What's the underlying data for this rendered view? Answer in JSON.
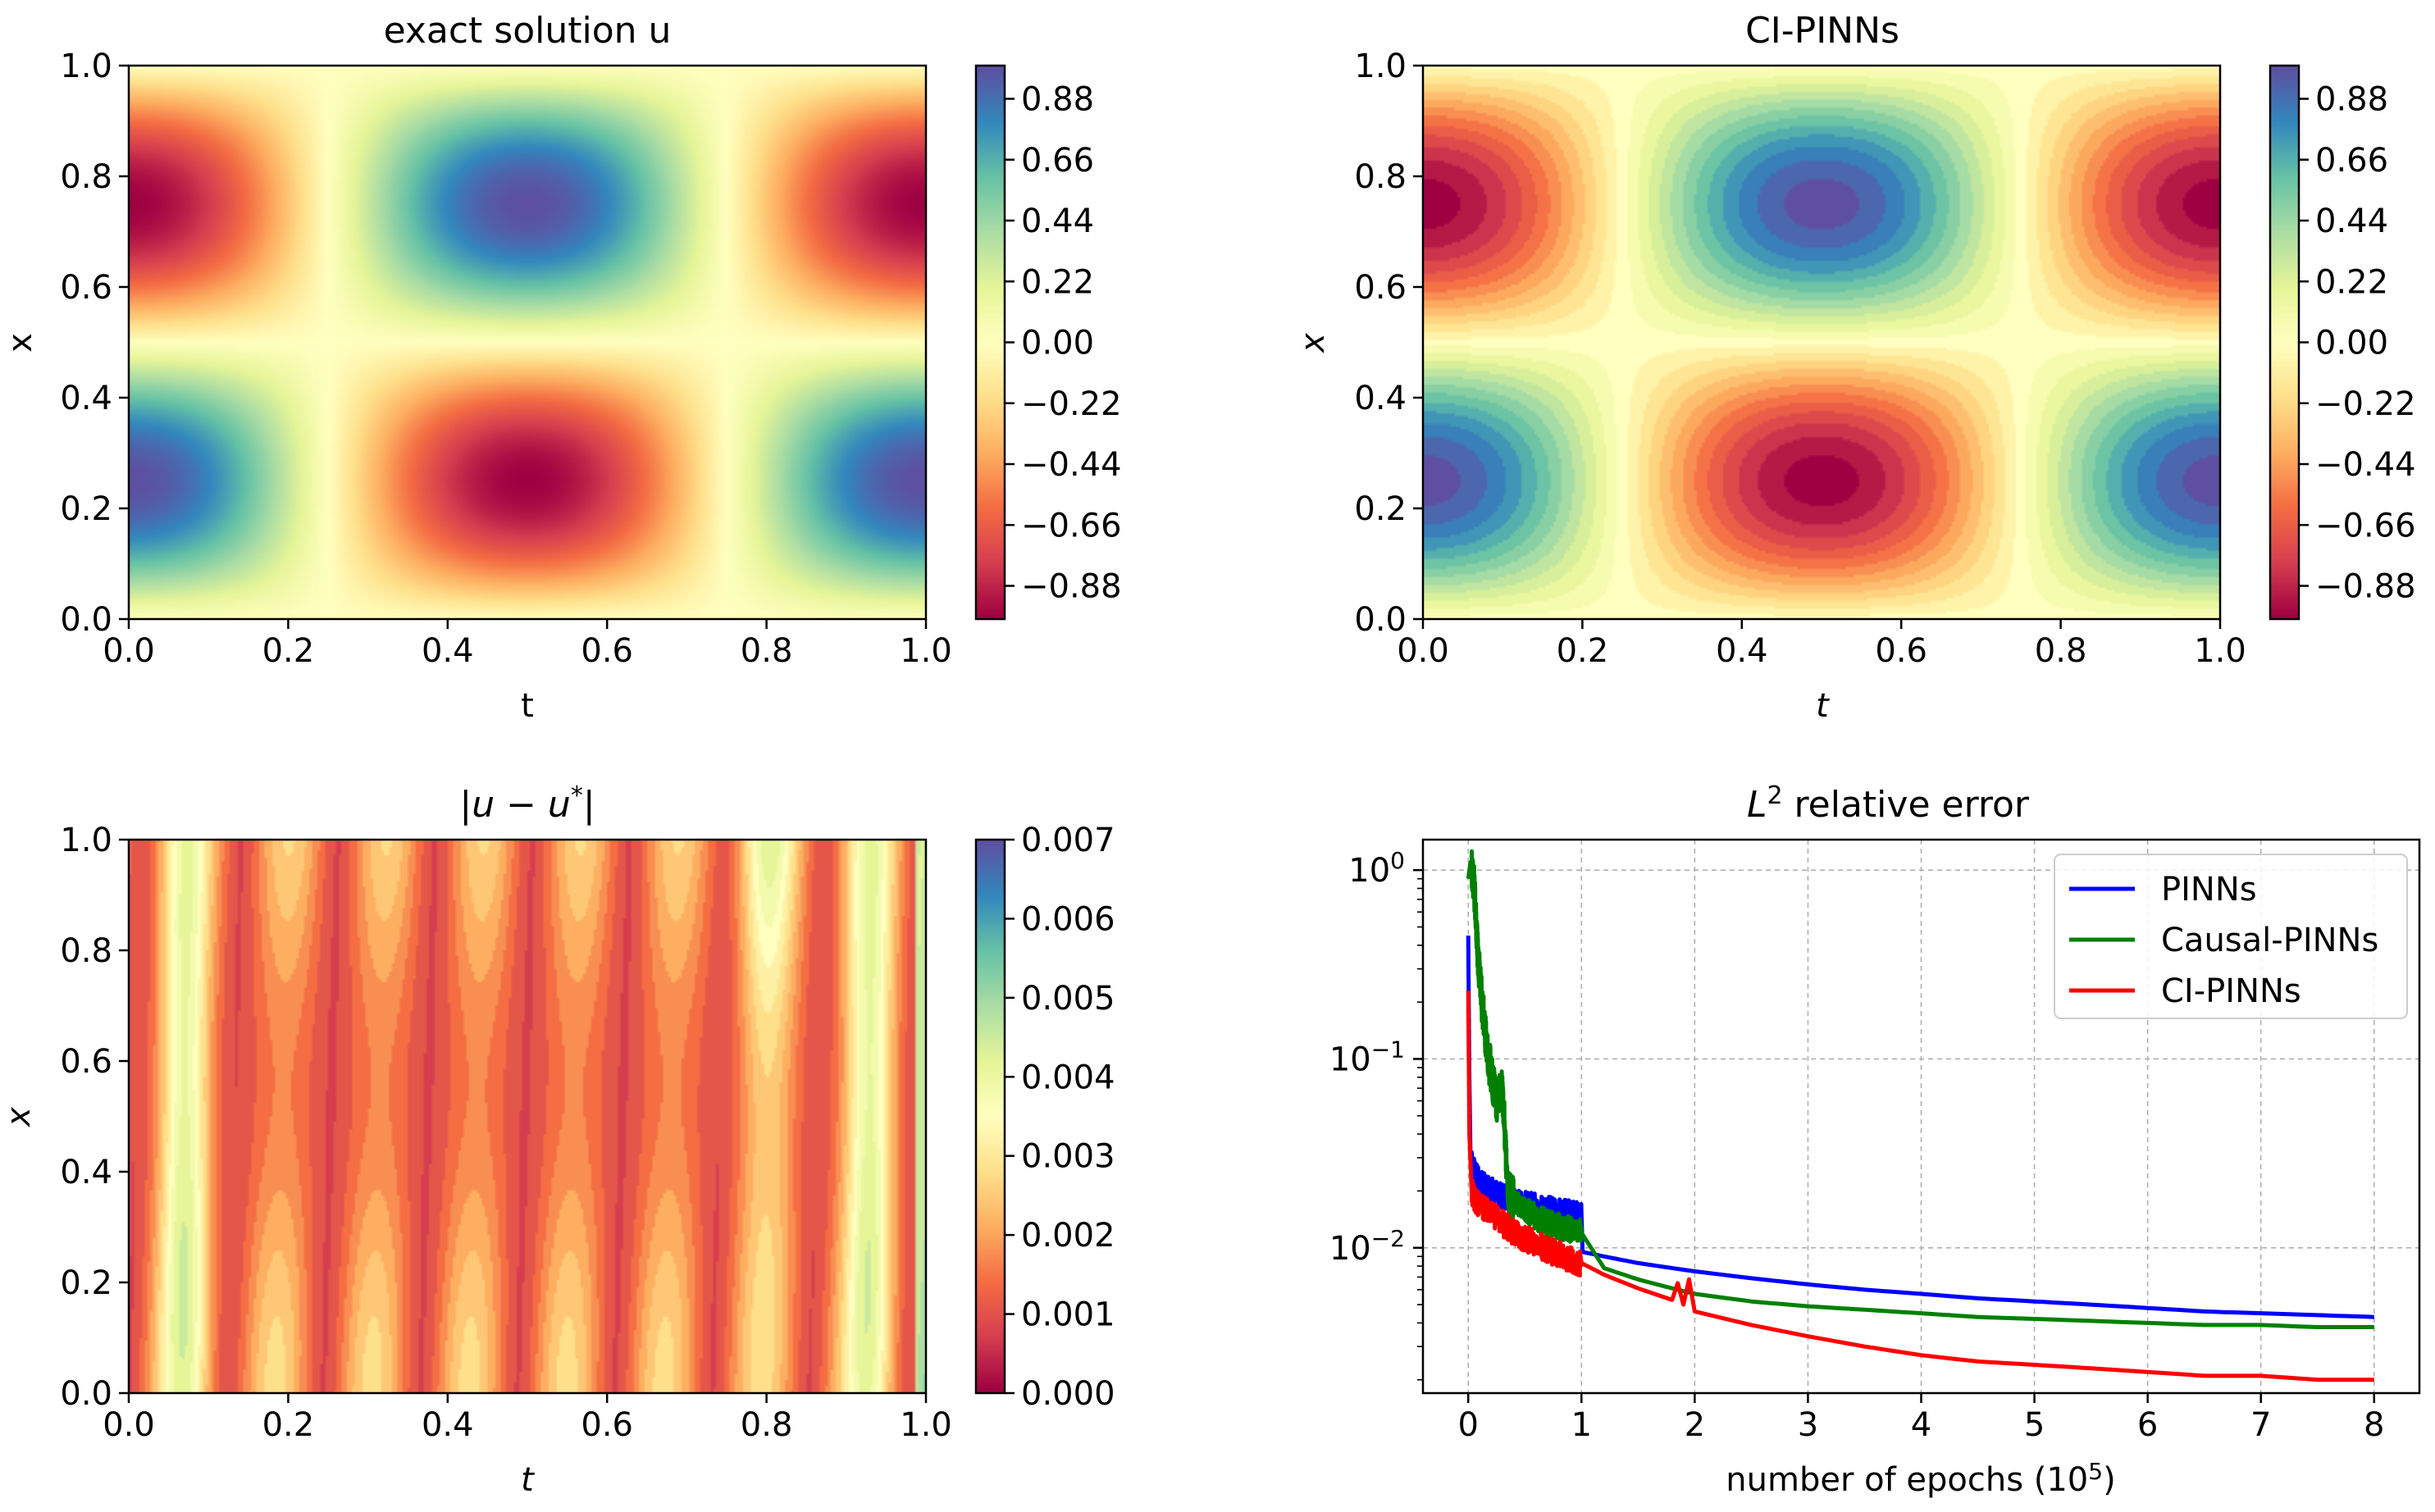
{
  "figure": {
    "panels": [
      {
        "kind": "heatmap",
        "title": "exact solution u",
        "xlabel": "t",
        "ylabel": "x",
        "field": "cos(2*pi*t)*sin(2*pi*x)",
        "colormap": "Spectral",
        "xlim": [
          0,
          1
        ],
        "ylim": [
          0,
          1
        ],
        "xticks": [
          "0.0",
          "0.2",
          "0.4",
          "0.6",
          "0.8",
          "1.0"
        ],
        "yticks": [
          "0.0",
          "0.2",
          "0.4",
          "0.6",
          "0.8",
          "1.0"
        ],
        "colorbar": {
          "min": -1,
          "max": 1,
          "ticks": [
            "0.88",
            "0.66",
            "0.44",
            "0.22",
            "0.00",
            "−0.22",
            "−0.44",
            "−0.66",
            "−0.88"
          ]
        }
      },
      {
        "kind": "heatmap",
        "title": "CI-PINNs",
        "xlabel": "t",
        "ylabel": "x",
        "field": "cos(2*pi*t)*sin(2*pi*x)",
        "colormap": "Spectral",
        "xlim": [
          0,
          1
        ],
        "ylim": [
          0,
          1
        ],
        "xticks": [
          "0.0",
          "0.2",
          "0.4",
          "0.6",
          "0.8",
          "1.0"
        ],
        "yticks": [
          "0.0",
          "0.2",
          "0.4",
          "0.6",
          "0.8",
          "1.0"
        ],
        "colorbar": {
          "min": -1,
          "max": 1,
          "ticks": [
            "0.88",
            "0.66",
            "0.44",
            "0.22",
            "0.00",
            "−0.22",
            "−0.44",
            "−0.66",
            "−0.88"
          ]
        }
      },
      {
        "kind": "heatmap",
        "title_parts": [
          "|",
          "u",
          " − ",
          "u",
          "*",
          "|"
        ],
        "xlabel": "t",
        "ylabel": "x",
        "field": "abs error",
        "colormap": "Spectral",
        "xlim": [
          0,
          1
        ],
        "ylim": [
          0,
          1
        ],
        "xticks": [
          "0.0",
          "0.2",
          "0.4",
          "0.6",
          "0.8",
          "1.0"
        ],
        "yticks": [
          "0.0",
          "0.2",
          "0.4",
          "0.6",
          "0.8",
          "1.0"
        ],
        "colorbar": {
          "min": 0,
          "max": 0.007,
          "ticks": [
            "0.007",
            "0.006",
            "0.005",
            "0.004",
            "0.003",
            "0.002",
            "0.001",
            "0.000"
          ]
        }
      },
      {
        "kind": "line",
        "title_parts": [
          "L",
          "2",
          " relative error"
        ],
        "xlabel_parts": [
          "number of epochs (10",
          "5",
          ")"
        ],
        "xticks": [
          "0",
          "1",
          "2",
          "3",
          "4",
          "5",
          "6",
          "7",
          "8"
        ],
        "yscale": "log",
        "yticks": [
          {
            "base": "10",
            "exp": "0"
          },
          {
            "base": "10",
            "exp": "−1"
          },
          {
            "base": "10",
            "exp": "−2"
          }
        ],
        "grid": true,
        "legend_placement": "top-right"
      }
    ]
  },
  "chart_data": {
    "type": "line",
    "xlabel": "number of epochs (10^5)",
    "ylabel": "",
    "title": "L^2 relative error",
    "xlim": [
      -0.4,
      8.4
    ],
    "ylim": [
      0.0017,
      1.45
    ],
    "yscale": "log",
    "grid": true,
    "legend": "top-right",
    "series": [
      {
        "name": "PINNs",
        "color": "#0000ff",
        "x": [
          0.0,
          0.01,
          0.02,
          0.04,
          0.07,
          0.1,
          0.15,
          0.2,
          0.3,
          0.4,
          0.5,
          0.6,
          0.7,
          0.8,
          0.9,
          1.0,
          1.01,
          1.2,
          1.5,
          2.0,
          2.5,
          3.0,
          3.5,
          4.0,
          4.5,
          5.0,
          5.5,
          6.0,
          6.5,
          7.0,
          7.5,
          8.0
        ],
        "y": [
          0.45,
          0.08,
          0.03,
          0.026,
          0.024,
          0.022,
          0.021,
          0.02,
          0.019,
          0.018,
          0.017,
          0.0165,
          0.016,
          0.0155,
          0.0152,
          0.015,
          0.0095,
          0.009,
          0.0083,
          0.0075,
          0.0069,
          0.0064,
          0.006,
          0.0057,
          0.0054,
          0.0052,
          0.005,
          0.0048,
          0.0046,
          0.0045,
          0.0044,
          0.0043
        ]
      },
      {
        "name": "Causal-PINNs",
        "color": "#008000",
        "x": [
          0.0,
          0.02,
          0.05,
          0.08,
          0.12,
          0.16,
          0.2,
          0.25,
          0.3,
          0.35,
          0.4,
          0.5,
          0.6,
          0.7,
          0.8,
          0.9,
          1.0,
          1.2,
          1.5,
          1.8,
          1.95,
          2.0,
          2.5,
          3.0,
          3.5,
          4.0,
          4.5,
          5.0,
          5.5,
          6.0,
          6.5,
          7.0,
          7.5,
          8.0
        ],
        "y": [
          0.9,
          1.1,
          0.85,
          0.4,
          0.2,
          0.12,
          0.085,
          0.06,
          0.075,
          0.02,
          0.018,
          0.016,
          0.0145,
          0.0135,
          0.013,
          0.0125,
          0.012,
          0.0078,
          0.0068,
          0.0061,
          0.0058,
          0.0057,
          0.0052,
          0.0049,
          0.0047,
          0.0045,
          0.0043,
          0.0042,
          0.0041,
          0.004,
          0.0039,
          0.0039,
          0.0038,
          0.0038
        ]
      },
      {
        "name": "CI-PINNs",
        "color": "#ff0000",
        "x": [
          0.0,
          0.01,
          0.03,
          0.06,
          0.1,
          0.2,
          0.3,
          0.4,
          0.5,
          0.6,
          0.7,
          0.8,
          0.9,
          1.0,
          1.2,
          1.5,
          1.8,
          1.85,
          1.9,
          1.95,
          2.0,
          2.5,
          3.0,
          3.5,
          4.0,
          4.5,
          5.0,
          5.5,
          6.0,
          6.5,
          7.0,
          7.5,
          8.0
        ],
        "y": [
          0.23,
          0.04,
          0.02,
          0.018,
          0.017,
          0.015,
          0.0135,
          0.0122,
          0.0112,
          0.0105,
          0.0098,
          0.0092,
          0.0087,
          0.0083,
          0.0072,
          0.0061,
          0.0053,
          0.0065,
          0.005,
          0.0068,
          0.0046,
          0.0039,
          0.0034,
          0.003,
          0.0027,
          0.0025,
          0.0024,
          0.0023,
          0.0022,
          0.0021,
          0.0021,
          0.002,
          0.002
        ]
      }
    ]
  }
}
